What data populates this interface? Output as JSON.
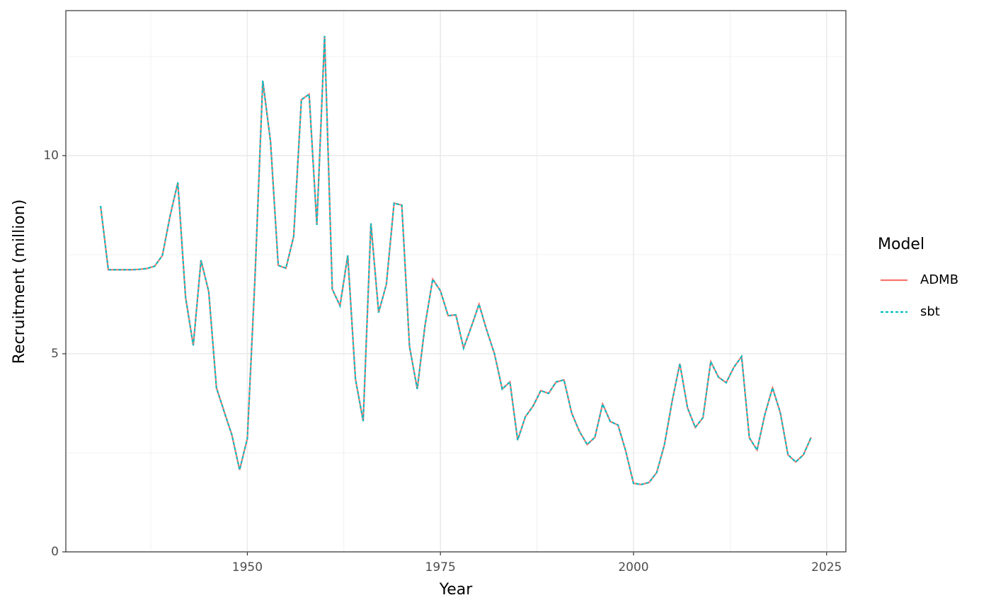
{
  "chart_data": {
    "type": "line",
    "x_label": "Year",
    "y_label": "Recruitment (million)",
    "legend_title": "Model",
    "legend": "right",
    "grid": true,
    "xlim": [
      1926.5,
      2027.5
    ],
    "ylim": [
      0,
      13.66
    ],
    "xticks": [
      1950,
      1975,
      2000,
      2025
    ],
    "yticks": [
      0,
      5,
      10
    ],
    "xminor": [
      1937.5,
      1962.5,
      1987.5,
      2012.5
    ],
    "yminor": [
      2.5,
      7.5,
      12.5
    ],
    "x": [
      1931,
      1932,
      1933,
      1934,
      1935,
      1936,
      1937,
      1938,
      1939,
      1940,
      1941,
      1942,
      1943,
      1944,
      1945,
      1946,
      1947,
      1948,
      1949,
      1950,
      1951,
      1952,
      1953,
      1954,
      1955,
      1956,
      1957,
      1958,
      1959,
      1960,
      1961,
      1962,
      1963,
      1964,
      1965,
      1966,
      1967,
      1968,
      1969,
      1970,
      1971,
      1972,
      1973,
      1974,
      1975,
      1976,
      1977,
      1978,
      1979,
      1980,
      1981,
      1982,
      1983,
      1984,
      1985,
      1986,
      1987,
      1988,
      1989,
      1990,
      1991,
      1992,
      1993,
      1994,
      1995,
      1996,
      1997,
      1998,
      1999,
      2000,
      2001,
      2002,
      2003,
      2004,
      2005,
      2006,
      2007,
      2008,
      2009,
      2010,
      2011,
      2012,
      2013,
      2014,
      2015,
      2016,
      2017,
      2018,
      2019,
      2020,
      2021,
      2022,
      2023
    ],
    "series": [
      {
        "name": "ADMB",
        "color": "#F8766D",
        "dash": "solid",
        "values": [
          8.73,
          7.12,
          7.12,
          7.12,
          7.12,
          7.13,
          7.15,
          7.21,
          7.48,
          8.48,
          9.32,
          6.43,
          5.21,
          7.36,
          6.57,
          4.14,
          3.54,
          2.95,
          2.07,
          2.86,
          6.96,
          11.89,
          10.36,
          7.23,
          7.16,
          7.96,
          11.41,
          11.55,
          8.25,
          13.02,
          6.63,
          6.21,
          7.48,
          4.36,
          3.3,
          8.29,
          6.04,
          6.75,
          8.8,
          8.75,
          5.18,
          4.11,
          5.71,
          6.88,
          6.59,
          5.96,
          5.98,
          5.14,
          5.68,
          6.25,
          5.59,
          5.0,
          4.11,
          4.29,
          2.82,
          3.41,
          3.68,
          4.07,
          4.0,
          4.29,
          4.34,
          3.5,
          3.04,
          2.71,
          2.89,
          3.73,
          3.29,
          3.2,
          2.54,
          1.73,
          1.7,
          1.75,
          2.0,
          2.7,
          3.8,
          4.75,
          3.63,
          3.14,
          3.39,
          4.8,
          4.41,
          4.27,
          4.66,
          4.93,
          2.88,
          2.57,
          3.46,
          4.14,
          3.52,
          2.45,
          2.27,
          2.45,
          2.89
        ]
      },
      {
        "name": "sbt",
        "color": "#00BFC4",
        "dash": "dotted",
        "values": [
          8.73,
          7.12,
          7.12,
          7.12,
          7.12,
          7.13,
          7.15,
          7.21,
          7.48,
          8.48,
          9.32,
          6.43,
          5.21,
          7.36,
          6.57,
          4.14,
          3.54,
          2.95,
          2.07,
          2.86,
          6.96,
          11.89,
          10.36,
          7.23,
          7.16,
          7.96,
          11.41,
          11.55,
          8.25,
          13.02,
          6.63,
          6.21,
          7.48,
          4.36,
          3.3,
          8.29,
          6.04,
          6.75,
          8.8,
          8.75,
          5.18,
          4.11,
          5.71,
          6.88,
          6.59,
          5.96,
          5.98,
          5.14,
          5.68,
          6.25,
          5.59,
          5.0,
          4.11,
          4.29,
          2.82,
          3.41,
          3.68,
          4.07,
          4.0,
          4.29,
          4.34,
          3.5,
          3.04,
          2.71,
          2.89,
          3.73,
          3.29,
          3.2,
          2.54,
          1.73,
          1.7,
          1.75,
          2.0,
          2.7,
          3.8,
          4.75,
          3.63,
          3.14,
          3.39,
          4.8,
          4.41,
          4.27,
          4.66,
          4.93,
          2.88,
          2.57,
          3.46,
          4.14,
          3.52,
          2.45,
          2.27,
          2.45,
          2.89
        ]
      }
    ]
  }
}
